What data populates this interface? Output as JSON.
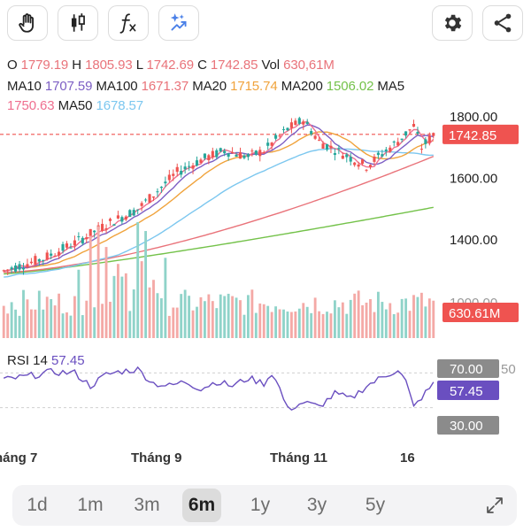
{
  "toolbar": {
    "left_tools": [
      "hand-icon",
      "candlestick-icon",
      "function-icon",
      "sparkle-icon"
    ],
    "right_tools": [
      "gear-icon",
      "share-icon"
    ]
  },
  "ohlc": {
    "o_label": "O",
    "o_value": "1779.19",
    "h_label": "H",
    "h_value": "1805.93",
    "l_label": "L",
    "l_value": "1742.69",
    "c_label": "C",
    "c_value": "1742.85",
    "vol_label": "Vol",
    "vol_value": "630,61M"
  },
  "ma": {
    "ma10_label": "MA10",
    "ma10_value": "1707.59",
    "ma100_label": "MA100",
    "ma100_value": "1671.37",
    "ma20_label": "MA20",
    "ma20_value": "1715.74",
    "ma200_label": "MA200",
    "ma200_value": "1506.02",
    "ma5_label": "MA5",
    "ma5_value": "1750.63",
    "ma50_label": "MA50",
    "ma50_value": "1678.57"
  },
  "colors": {
    "up": "#26a69a",
    "down": "#ef5350",
    "ma5": "#ef6f8f",
    "ma10": "#7d5fc4",
    "ma20": "#f0a33c",
    "ma50": "#7cc7ef",
    "ma100": "#e9737a",
    "ma200": "#74c24a",
    "rsi": "#6a4fc0"
  },
  "price_axis": {
    "labels": [
      "1800.00",
      "1600.00",
      "1400.00"
    ],
    "current_price_badge": "1742.85",
    "partial_label": "1800.00"
  },
  "volume_axis": {
    "badge": "630.61M",
    "partial_label": "1000.00"
  },
  "rsi": {
    "label": "RSI 14",
    "value": "57.45",
    "upper_badge": "70.00",
    "current_badge": "57.45",
    "lower_badge": "30.00",
    "partial_label": "50"
  },
  "time_axis": {
    "labels": [
      "háng 7",
      "Tháng 9",
      "Tháng 11",
      "16"
    ]
  },
  "ranges": {
    "items": [
      "1d",
      "1m",
      "3m",
      "6m",
      "1y",
      "3y",
      "5y"
    ],
    "active": "6m"
  },
  "chart_data": {
    "type": "candlestick",
    "price_range": [
      1260,
      1840
    ],
    "indicator_lines": {
      "ma200": {
        "start": 1290,
        "end": 1506.02
      },
      "ma100": {
        "start": 1295,
        "end": 1671.37
      },
      "ma50": {
        "start": 1300,
        "end": 1678.57
      }
    },
    "rsi_range": [
      0,
      100
    ],
    "rsi_levels": [
      30,
      70
    ],
    "last": {
      "open": 1779.19,
      "high": 1805.93,
      "low": 1742.69,
      "close": 1742.85,
      "volume": "630,61M"
    }
  }
}
